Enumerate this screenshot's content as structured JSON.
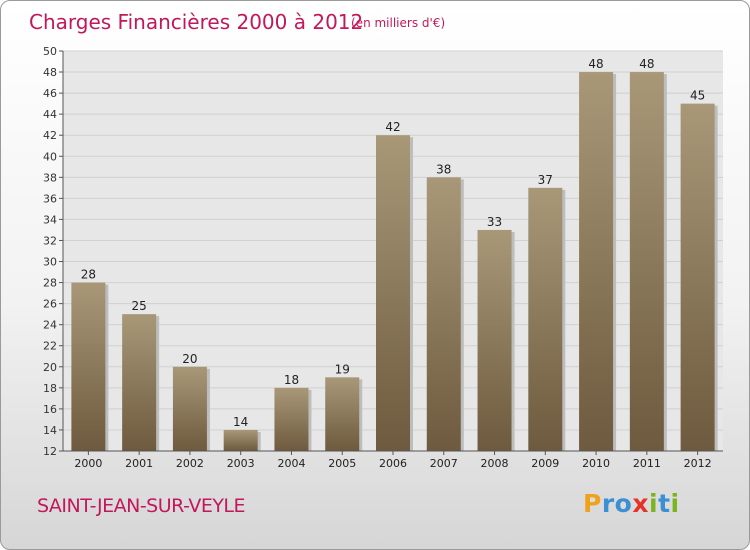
{
  "chart_data": {
    "type": "bar",
    "title": "Charges Financières 2000 à 2012",
    "subtitle": "(en milliers d'€)",
    "categories": [
      "2000",
      "2001",
      "2002",
      "2003",
      "2004",
      "2005",
      "2006",
      "2007",
      "2008",
      "2009",
      "2010",
      "2011",
      "2012"
    ],
    "values": [
      28,
      25,
      20,
      14,
      18,
      19,
      42,
      38,
      33,
      37,
      48,
      48,
      45
    ],
    "ylim": [
      12,
      50
    ],
    "yticks": [
      12,
      14,
      16,
      18,
      20,
      22,
      24,
      26,
      28,
      30,
      32,
      34,
      36,
      38,
      40,
      42,
      44,
      46,
      48,
      50
    ],
    "grid": true,
    "legend": "none",
    "colors": {
      "bar_top": "#a89878",
      "bar_bottom": "#6e5a3e",
      "title": "#c2185b",
      "subtitle": "#c2185b"
    }
  },
  "footer": {
    "town": "SAINT-JEAN-SUR-VEYLE",
    "logo_letters": [
      "P",
      "r",
      "o",
      "x",
      "i",
      "t",
      "i"
    ],
    "logo_colors": [
      "#f0a21c",
      "#3b8fd3",
      "#3b8fd3",
      "#e6332a",
      "#7ab51d",
      "#3b8fd3",
      "#7ab51d"
    ]
  }
}
